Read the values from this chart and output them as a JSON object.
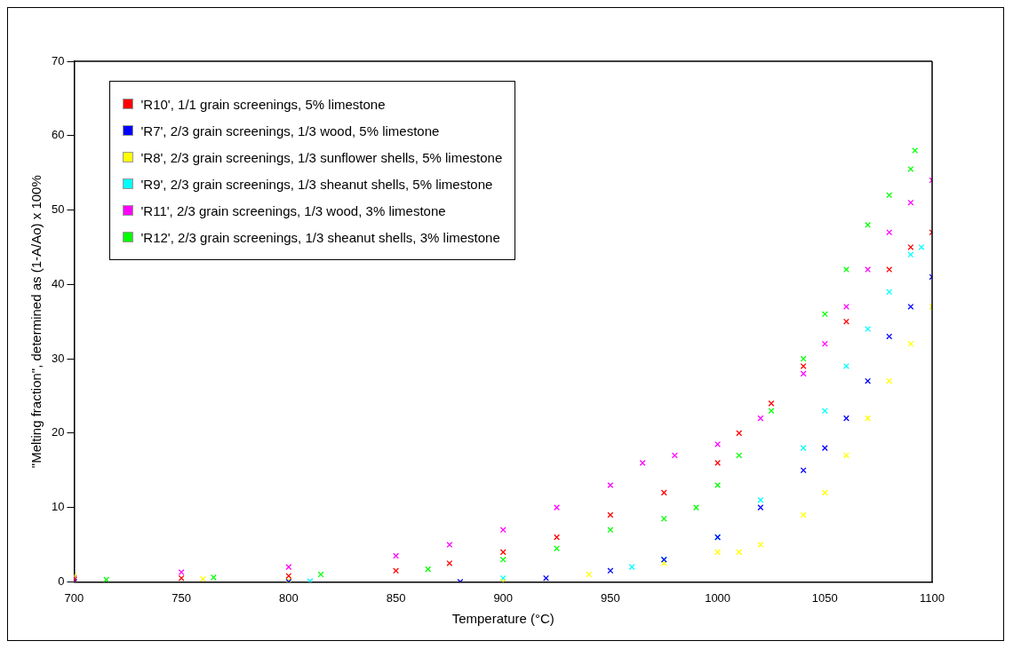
{
  "chart_data": {
    "type": "scatter",
    "xlabel": "Temperature (°C)",
    "ylabel": "\"Melting fraction\", determined as (1-A/Ao) x 100%",
    "xlim": [
      700,
      1100
    ],
    "ylim": [
      0,
      70
    ],
    "xticks": [
      700,
      750,
      800,
      850,
      900,
      950,
      1000,
      1050,
      1100
    ],
    "yticks": [
      0,
      10,
      20,
      30,
      40,
      50,
      60,
      70
    ],
    "grid": false,
    "legend": "top left",
    "marker": "cross",
    "series": [
      {
        "name": "'R10', 1/1 grain screenings, 5% limestone",
        "color": "#ff0000",
        "x": [
          700,
          750,
          800,
          850,
          875,
          900,
          925,
          950,
          975,
          1000,
          1010,
          1025,
          1040,
          1060,
          1080,
          1090,
          1100
        ],
        "values": [
          0.3,
          0.5,
          0.8,
          1.5,
          2.5,
          4,
          6,
          9,
          12,
          16,
          20,
          24,
          29,
          35,
          42,
          45,
          47
        ]
      },
      {
        "name": "'R7', 2/3 grain screenings, 1/3 wood, 5% limestone",
        "color": "#0000ff",
        "x": [
          700,
          800,
          880,
          920,
          950,
          975,
          1000,
          1020,
          1040,
          1050,
          1060,
          1070,
          1080,
          1090,
          1100
        ],
        "values": [
          0,
          0,
          0,
          0.5,
          1.5,
          3,
          6,
          10,
          15,
          18,
          22,
          27,
          33,
          37,
          41
        ]
      },
      {
        "name": "'R8', 2/3 grain screenings, 1/3 sunflower shells, 5% limestone",
        "color": "#ffff00",
        "x": [
          700,
          760,
          800,
          900,
          940,
          975,
          1000,
          1010,
          1020,
          1040,
          1050,
          1060,
          1070,
          1080,
          1090,
          1100
        ],
        "values": [
          0.8,
          0.4,
          0.2,
          0,
          1,
          2.5,
          4,
          4,
          5,
          9,
          12,
          17,
          22,
          27,
          32,
          37
        ]
      },
      {
        "name": "'R9', 2/3 grain screenings, 1/3 sheanut shells, 5% limestone",
        "color": "#00ffff",
        "x": [
          700,
          810,
          900,
          960,
          975,
          1000,
          1020,
          1040,
          1050,
          1060,
          1070,
          1080,
          1090,
          1095
        ],
        "values": [
          0,
          0.1,
          0.5,
          2,
          3,
          6,
          11,
          18,
          23,
          29,
          34,
          39,
          44,
          45
        ]
      },
      {
        "name": "'R11', 2/3 grain screenings, 1/3 wood, 3% limestone",
        "color": "#ff00ff",
        "x": [
          700,
          750,
          800,
          850,
          875,
          900,
          925,
          950,
          965,
          980,
          1000,
          1020,
          1040,
          1050,
          1060,
          1070,
          1080,
          1090,
          1100
        ],
        "values": [
          0.5,
          1.3,
          2,
          3.5,
          5,
          7,
          10,
          13,
          16,
          17,
          18.5,
          22,
          28,
          32,
          37,
          42,
          47,
          51,
          54
        ]
      },
      {
        "name": "'R12', 2/3 grain screenings, 1/3 sheanut shells, 3% limestone",
        "color": "#00ff00",
        "x": [
          715,
          765,
          815,
          865,
          900,
          925,
          950,
          975,
          990,
          1000,
          1010,
          1025,
          1040,
          1050,
          1060,
          1070,
          1080,
          1090,
          1092
        ],
        "values": [
          0.3,
          0.6,
          1,
          1.7,
          3,
          4.5,
          7,
          8.5,
          10,
          13,
          17,
          23,
          30,
          36,
          42,
          48,
          52,
          55.5,
          58
        ]
      }
    ]
  }
}
